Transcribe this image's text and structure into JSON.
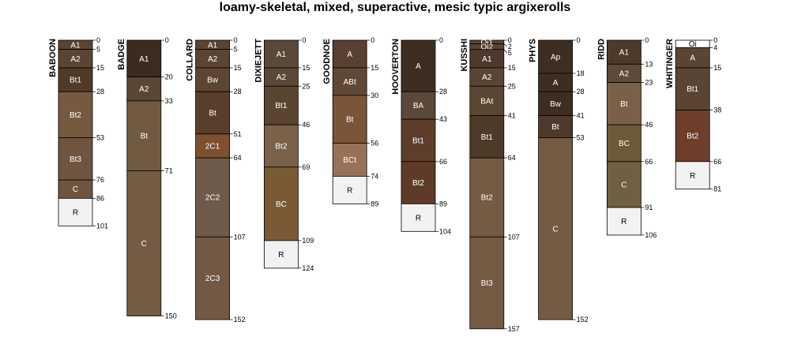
{
  "chart_data": {
    "type": "soil-profile-sketch",
    "title": "loamy-skeletal, mixed, superactive, mesic typic argixerolls",
    "depth_max": 160,
    "depth_unit": "cm",
    "profiles": [
      {
        "name": "BABOON",
        "horizons": [
          {
            "name": "A1",
            "top": 0,
            "bottom": 5,
            "color": "#5a4535"
          },
          {
            "name": "A2",
            "top": 5,
            "bottom": 15,
            "color": "#5a4535"
          },
          {
            "name": "Bt1",
            "top": 15,
            "bottom": 28,
            "color": "#4f3b27"
          },
          {
            "name": "Bt2",
            "top": 28,
            "bottom": 53,
            "color": "#765a40"
          },
          {
            "name": "Bt3",
            "top": 53,
            "bottom": 76,
            "color": "#6f5540"
          },
          {
            "name": "C",
            "top": 76,
            "bottom": 86,
            "color": "#6f5540"
          },
          {
            "name": "R",
            "top": 86,
            "bottom": 101,
            "color": "#f2f2f2"
          }
        ]
      },
      {
        "name": "BADGE",
        "horizons": [
          {
            "name": "A1",
            "top": 0,
            "bottom": 20,
            "color": "#3c2c20"
          },
          {
            "name": "A2",
            "top": 20,
            "bottom": 33,
            "color": "#5b4635"
          },
          {
            "name": "Bt",
            "top": 33,
            "bottom": 71,
            "color": "#725a42"
          },
          {
            "name": "C",
            "top": 71,
            "bottom": 150,
            "color": "#735b44"
          }
        ]
      },
      {
        "name": "COLLARD",
        "horizons": [
          {
            "name": "A1",
            "top": 0,
            "bottom": 5,
            "color": "#5a4535"
          },
          {
            "name": "A2",
            "top": 5,
            "bottom": 15,
            "color": "#5a4535"
          },
          {
            "name": "Bw",
            "top": 15,
            "bottom": 28,
            "color": "#5c4532"
          },
          {
            "name": "Bt",
            "top": 28,
            "bottom": 51,
            "color": "#5a3e2c"
          },
          {
            "name": "2C1",
            "top": 51,
            "bottom": 64,
            "color": "#7d5030"
          },
          {
            "name": "2C2",
            "top": 64,
            "bottom": 107,
            "color": "#6e5a4a"
          },
          {
            "name": "2C3",
            "top": 107,
            "bottom": 152,
            "color": "#735844"
          }
        ]
      },
      {
        "name": "DIXIEJETT",
        "horizons": [
          {
            "name": "A1",
            "top": 0,
            "bottom": 15,
            "color": "#5a4838"
          },
          {
            "name": "A2",
            "top": 15,
            "bottom": 25,
            "color": "#5a4838"
          },
          {
            "name": "Bt1",
            "top": 25,
            "bottom": 46,
            "color": "#5a4530"
          },
          {
            "name": "Bt2",
            "top": 46,
            "bottom": 69,
            "color": "#7a624a"
          },
          {
            "name": "BC",
            "top": 69,
            "bottom": 109,
            "color": "#7a5a34"
          },
          {
            "name": "R",
            "top": 109,
            "bottom": 124,
            "color": "#f2f2f2"
          }
        ]
      },
      {
        "name": "GOODNOE",
        "horizons": [
          {
            "name": "A",
            "top": 0,
            "bottom": 15,
            "color": "#5a4030"
          },
          {
            "name": "ABt",
            "top": 15,
            "bottom": 30,
            "color": "#5f4835"
          },
          {
            "name": "Bt",
            "top": 30,
            "bottom": 56,
            "color": "#7a5538"
          },
          {
            "name": "BCt",
            "top": 56,
            "bottom": 74,
            "color": "#977258"
          },
          {
            "name": "R",
            "top": 74,
            "bottom": 89,
            "color": "#f2f2f2"
          }
        ]
      },
      {
        "name": "HOOVERTON",
        "horizons": [
          {
            "name": "A",
            "top": 0,
            "bottom": 28,
            "color": "#3e2e22"
          },
          {
            "name": "BA",
            "top": 28,
            "bottom": 43,
            "color": "#5a4838"
          },
          {
            "name": "Bt1",
            "top": 43,
            "bottom": 66,
            "color": "#5e3e2a"
          },
          {
            "name": "Bt2",
            "top": 66,
            "bottom": 89,
            "color": "#5e3b28"
          },
          {
            "name": "R",
            "top": 89,
            "bottom": 104,
            "color": "#f2f2f2"
          }
        ]
      },
      {
        "name": "KUSSHI",
        "horizons": [
          {
            "name": "Oi1",
            "top": 0,
            "bottom": 2,
            "color": "#5a4535"
          },
          {
            "name": "Oi2",
            "top": 2,
            "bottom": 5,
            "color": "#5a4535"
          },
          {
            "name": "A1",
            "top": 5,
            "bottom": 15,
            "color": "#4e3a2c"
          },
          {
            "name": "A2",
            "top": 15,
            "bottom": 25,
            "color": "#5a4535"
          },
          {
            "name": "BAt",
            "top": 25,
            "bottom": 41,
            "color": "#5b4632"
          },
          {
            "name": "Bt1",
            "top": 41,
            "bottom": 64,
            "color": "#4e3a28"
          },
          {
            "name": "Bt2",
            "top": 64,
            "bottom": 107,
            "color": "#735b44"
          },
          {
            "name": "Bt3",
            "top": 107,
            "bottom": 157,
            "color": "#735b44"
          }
        ]
      },
      {
        "name": "PHYS",
        "horizons": [
          {
            "name": "Ap",
            "top": 0,
            "bottom": 18,
            "color": "#3e2e22"
          },
          {
            "name": "A",
            "top": 18,
            "bottom": 28,
            "color": "#3e2e22"
          },
          {
            "name": "Bw",
            "top": 28,
            "bottom": 41,
            "color": "#3e2e22"
          },
          {
            "name": "Bt",
            "top": 41,
            "bottom": 53,
            "color": "#4e3a2c"
          },
          {
            "name": "C",
            "top": 53,
            "bottom": 152,
            "color": "#735b44"
          }
        ]
      },
      {
        "name": "RIDD",
        "horizons": [
          {
            "name": "A1",
            "top": 0,
            "bottom": 13,
            "color": "#4e3a2c"
          },
          {
            "name": "A2",
            "top": 13,
            "bottom": 23,
            "color": "#5e4a38"
          },
          {
            "name": "Bt",
            "top": 23,
            "bottom": 46,
            "color": "#7a6048"
          },
          {
            "name": "BC",
            "top": 46,
            "bottom": 66,
            "color": "#6e5a3a"
          },
          {
            "name": "C",
            "top": 66,
            "bottom": 91,
            "color": "#6e6040"
          },
          {
            "name": "R",
            "top": 91,
            "bottom": 106,
            "color": "#f2f2f2"
          }
        ]
      },
      {
        "name": "WHITINGER",
        "horizons": [
          {
            "name": "Oi",
            "top": 0,
            "bottom": 4,
            "color": "#ffffff"
          },
          {
            "name": "A",
            "top": 4,
            "bottom": 15,
            "color": "#5a4535"
          },
          {
            "name": "Bt1",
            "top": 15,
            "bottom": 38,
            "color": "#5a4535"
          },
          {
            "name": "Bt2",
            "top": 38,
            "bottom": 66,
            "color": "#6e3e2a"
          },
          {
            "name": "R",
            "top": 66,
            "bottom": 81,
            "color": "#f2f2f2"
          }
        ]
      }
    ]
  }
}
